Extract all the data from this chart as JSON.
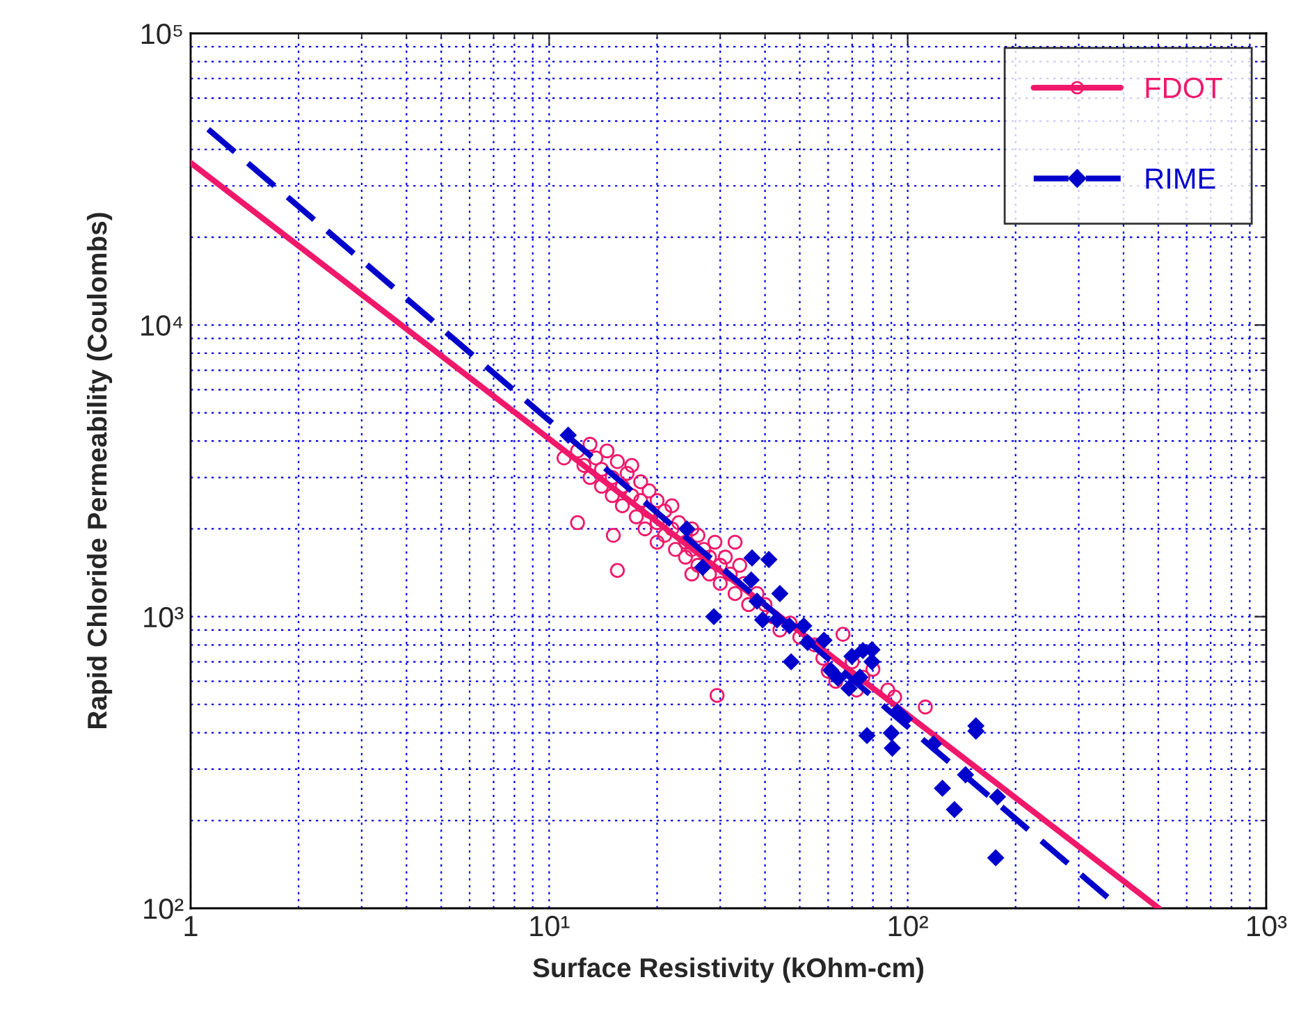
{
  "chart_data": {
    "type": "scatter",
    "xlabel": "Surface Resistivity (kOhm-cm)",
    "ylabel": "Rapid Chloride Permeability (Coulombs)",
    "log": "xy",
    "grid": true,
    "legend": "top right",
    "xlim": [
      1,
      1000
    ],
    "xticks": [
      {
        "value": 1,
        "label": "1"
      },
      {
        "value": 10,
        "label": "10¹"
      },
      {
        "value": 100,
        "label": "10²"
      },
      {
        "value": 1000,
        "label": "10³"
      }
    ],
    "ylim": [
      100,
      100000
    ],
    "yticks": [
      {
        "value": 100,
        "label": "10²"
      },
      {
        "value": 1000,
        "label": "10³"
      },
      {
        "value": 10000,
        "label": "10⁴"
      },
      {
        "value": 100000,
        "label": "10⁵"
      }
    ],
    "series": [
      {
        "name": "FDOT",
        "marker": "circle",
        "color": "#f0186a",
        "x": [
          12,
          12.5,
          13,
          13,
          13.5,
          14,
          14,
          14.5,
          15,
          15,
          15.5,
          16,
          16,
          16.5,
          17,
          17,
          17.5,
          18,
          18,
          18.5,
          19,
          19,
          20,
          20,
          20,
          21,
          21,
          22,
          22,
          22.5,
          23,
          24,
          24,
          25,
          25,
          26,
          26,
          27,
          28,
          28,
          29,
          30,
          30,
          31,
          32,
          33,
          34,
          35,
          36,
          38,
          40,
          42,
          44,
          47,
          50,
          55,
          58,
          60,
          63,
          66,
          70,
          72,
          75,
          80,
          88,
          92,
          112,
          12,
          15.5,
          15.1,
          29.4,
          11,
          25,
          33
        ],
        "values": [
          3700,
          3300,
          3900,
          3000,
          3500,
          3200,
          2800,
          3700,
          3000,
          2600,
          3400,
          2800,
          2400,
          3100,
          2600,
          3300,
          2200,
          2500,
          2900,
          2000,
          2300,
          2700,
          2100,
          2500,
          1800,
          2300,
          1900,
          2000,
          2400,
          1700,
          2100,
          1800,
          1600,
          2000,
          1700,
          1500,
          1900,
          1700,
          1400,
          1600,
          1800,
          1500,
          1300,
          1600,
          1400,
          1200,
          1500,
          1300,
          1100,
          1200,
          1100,
          1000,
          900,
          950,
          850,
          800,
          720,
          650,
          600,
          870,
          700,
          560,
          620,
          660,
          560,
          530,
          490,
          2100,
          1440,
          1900,
          537,
          3500,
          1400,
          1800
        ]
      },
      {
        "type": "line",
        "line_style": "solid",
        "color": "#f0186a",
        "x": [
          1,
          502
        ],
        "values": [
          36000,
          100
        ]
      },
      {
        "name": "RIME",
        "marker": "diamond",
        "color": "#0000cc",
        "x": [
          11.3,
          24.2,
          26.8,
          28.8,
          36.8,
          41,
          36.6,
          38,
          44,
          39.4,
          43.2,
          46.8,
          51.3,
          52.6,
          58.4,
          47.3,
          61,
          63.9,
          69.9,
          75,
          79.5,
          79.5,
          68.6,
          73.6,
          77,
          90,
          90.6,
          93.6,
          98,
          118,
          155,
          155,
          145,
          125,
          135,
          178,
          176
        ],
        "values": [
          4190,
          2000,
          1476,
          1000,
          1590,
          1570,
          1336,
          1130,
          1200,
          975,
          975,
          930,
          930,
          815,
          830,
          700,
          655,
          615,
          731,
          765,
          770,
          700,
          568,
          620,
          391,
          399,
          354,
          471,
          446,
          366,
          422,
          405,
          287,
          258,
          218,
          241,
          149
        ]
      },
      {
        "type": "line",
        "line_style": "dashed",
        "color": "#0000cc",
        "x": [
          1.12,
          392
        ],
        "values": [
          46900,
          100
        ]
      }
    ]
  }
}
